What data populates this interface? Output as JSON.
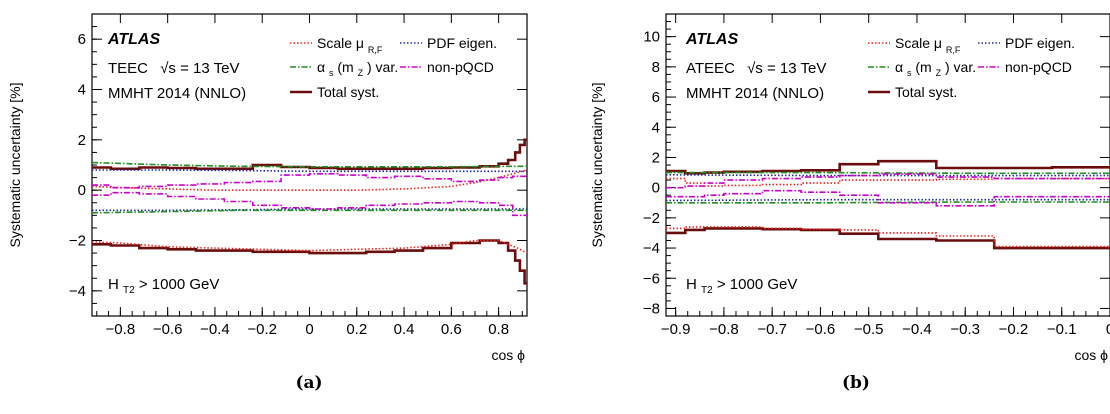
{
  "chart_data": [
    {
      "type": "line",
      "panel": "(a)",
      "atlas_label": "ATLAS",
      "observable": "TEEC",
      "sqrt_s": "13 TeV",
      "pdf": "MMHT 2014 (NNLO)",
      "cut_main": "H",
      "cut_sub": "T2",
      "cut_rest": " > 1000 GeV",
      "xlabel": "cos ϕ",
      "ylabel": "Systematic uncertainty [%]",
      "xlim": [
        -0.92,
        0.92
      ],
      "ylim": [
        -5,
        7
      ],
      "xticks": [
        "−0.8",
        "−0.6",
        "−0.4",
        "−0.2",
        "0",
        "0.2",
        "0.4",
        "0.6",
        "0.8"
      ],
      "xtick_values": [
        -0.8,
        -0.6,
        -0.4,
        -0.2,
        0,
        0.2,
        0.4,
        0.6,
        0.8
      ],
      "yticks": [
        "−4",
        "−2",
        "0",
        "2",
        "4",
        "6"
      ],
      "ytick_values": [
        -4,
        -2,
        0,
        2,
        4,
        6
      ],
      "legend": {
        "scale_main": "Scale μ",
        "scale_sub": "R,F",
        "pdf": "PDF eigen.",
        "alphas_main": "α",
        "alphas_sub1": "s",
        "alphas_mid": "(m",
        "alphas_sub2": "Z",
        "alphas_end": ") var.",
        "nonpqcd": "non-pQCD",
        "total": "Total syst."
      },
      "series": [
        {
          "name": "Total syst.",
          "color": "#6b0d0d",
          "style": "solid",
          "width": 2.6,
          "step": true,
          "x": [
            -0.92,
            -0.84,
            -0.72,
            -0.6,
            -0.48,
            -0.36,
            -0.24,
            -0.12,
            0,
            0.12,
            0.24,
            0.36,
            0.48,
            0.6,
            0.72,
            0.8,
            0.84,
            0.87,
            0.89,
            0.91,
            0.92
          ],
          "up": [
            0.9,
            0.85,
            0.9,
            0.88,
            0.85,
            0.85,
            1.0,
            0.92,
            0.88,
            0.85,
            0.85,
            0.85,
            0.88,
            0.9,
            0.95,
            1.05,
            1.2,
            1.5,
            1.8,
            2.0,
            2.0
          ],
          "down": [
            -2.15,
            -2.2,
            -2.3,
            -2.35,
            -2.4,
            -2.4,
            -2.45,
            -2.45,
            -2.5,
            -2.5,
            -2.45,
            -2.4,
            -2.3,
            -2.1,
            -2.0,
            -2.1,
            -2.4,
            -2.8,
            -3.2,
            -3.7,
            -3.7
          ]
        },
        {
          "name": "Scale μR,F",
          "color": "#e8271c",
          "style": "dotted",
          "width": 1.6,
          "step": false,
          "x": [
            -0.92,
            -0.8,
            -0.6,
            -0.4,
            -0.2,
            0,
            0.2,
            0.4,
            0.6,
            0.7,
            0.8,
            0.88,
            0.92
          ],
          "up": [
            0.15,
            0.1,
            0.05,
            0.0,
            0.0,
            0.0,
            0.0,
            0.05,
            0.15,
            0.3,
            0.5,
            0.7,
            0.8
          ],
          "down": [
            -2.05,
            -2.1,
            -2.25,
            -2.3,
            -2.35,
            -2.4,
            -2.35,
            -2.3,
            -2.15,
            -2.0,
            -2.0,
            -2.3,
            -2.5
          ]
        },
        {
          "name": "PDF eigen.",
          "color": "#1e2aa8",
          "style": "dotted",
          "width": 1.6,
          "step": false,
          "x": [
            -0.92,
            -0.6,
            -0.3,
            0,
            0.3,
            0.6,
            0.92
          ],
          "up": [
            0.8,
            0.8,
            0.78,
            0.75,
            0.75,
            0.75,
            0.75
          ],
          "down": [
            -0.8,
            -0.8,
            -0.78,
            -0.75,
            -0.75,
            -0.75,
            -0.75
          ]
        },
        {
          "name": "αs(mZ) var.",
          "color": "#1f8f1f",
          "style": "dashdot",
          "width": 1.6,
          "step": false,
          "x": [
            -0.92,
            -0.6,
            -0.3,
            0,
            0.3,
            0.6,
            0.85,
            0.92
          ],
          "up": [
            1.1,
            1.0,
            0.95,
            0.93,
            0.93,
            0.93,
            0.95,
            0.95
          ],
          "down": [
            -0.9,
            -0.85,
            -0.8,
            -0.8,
            -0.8,
            -0.8,
            -0.8,
            -0.8
          ]
        },
        {
          "name": "non-pQCD",
          "color": "#cc00cc",
          "style": "dashdot",
          "width": 1.6,
          "step": true,
          "x": [
            -0.92,
            -0.84,
            -0.72,
            -0.6,
            -0.48,
            -0.36,
            -0.24,
            -0.12,
            0,
            0.12,
            0.24,
            0.36,
            0.48,
            0.6,
            0.72,
            0.8,
            0.86,
            0.92
          ],
          "up": [
            0.2,
            0.1,
            0.15,
            0.2,
            0.25,
            0.3,
            0.35,
            0.6,
            0.65,
            0.6,
            0.5,
            0.55,
            0.45,
            0.35,
            0.4,
            0.5,
            0.55,
            0.55
          ],
          "down": [
            -0.2,
            -0.1,
            -0.15,
            -0.25,
            -0.35,
            -0.45,
            -0.6,
            -0.7,
            -0.75,
            -0.7,
            -0.6,
            -0.55,
            -0.5,
            -0.45,
            -0.5,
            -0.6,
            -1.0,
            -1.8
          ]
        }
      ]
    },
    {
      "type": "line",
      "panel": "(b)",
      "atlas_label": "ATLAS",
      "observable": "ATEEC",
      "sqrt_s": "13 TeV",
      "pdf": "MMHT 2014 (NNLO)",
      "cut_main": "H",
      "cut_sub": "T2",
      "cut_rest": " > 1000 GeV",
      "xlabel": "cos ϕ",
      "ylabel": "Systematic uncertainty [%]",
      "xlim": [
        -0.92,
        0
      ],
      "ylim": [
        -8.5,
        11.5
      ],
      "xticks": [
        "−0.9",
        "−0.8",
        "−0.7",
        "−0.6",
        "−0.5",
        "−0.4",
        "−0.3",
        "−0.2",
        "−0.1",
        "0"
      ],
      "xtick_values": [
        -0.9,
        -0.8,
        -0.7,
        -0.6,
        -0.5,
        -0.4,
        -0.3,
        -0.2,
        -0.1,
        0
      ],
      "yticks": [
        "−8",
        "−6",
        "−4",
        "−2",
        "0",
        "2",
        "4",
        "6",
        "8",
        "10"
      ],
      "ytick_values": [
        -8,
        -6,
        -4,
        -2,
        0,
        2,
        4,
        6,
        8,
        10
      ],
      "legend": {
        "scale_main": "Scale μ",
        "scale_sub": "R,F",
        "pdf": "PDF eigen.",
        "alphas_main": "α",
        "alphas_sub1": "s",
        "alphas_mid": "(m",
        "alphas_sub2": "Z",
        "alphas_end": ") var.",
        "nonpqcd": "non-pQCD",
        "total": "Total syst."
      },
      "series": [
        {
          "name": "Total syst.",
          "color": "#6b0d0d",
          "style": "solid",
          "width": 2.6,
          "step": true,
          "x": [
            -0.92,
            -0.88,
            -0.84,
            -0.8,
            -0.72,
            -0.64,
            -0.56,
            -0.48,
            -0.36,
            -0.24,
            -0.12,
            0
          ],
          "up": [
            1.1,
            0.95,
            1.0,
            1.05,
            1.1,
            1.15,
            1.55,
            1.75,
            1.3,
            1.3,
            1.35,
            1.35
          ],
          "down": [
            -3.0,
            -2.8,
            -2.7,
            -2.7,
            -2.75,
            -2.8,
            -3.05,
            -3.4,
            -3.5,
            -4.0,
            -4.0,
            -4.0
          ]
        },
        {
          "name": "Scale μR,F",
          "color": "#e8271c",
          "style": "dotted",
          "width": 1.6,
          "step": true,
          "x": [
            -0.92,
            -0.88,
            -0.84,
            -0.8,
            -0.72,
            -0.64,
            -0.56,
            -0.48,
            -0.36,
            -0.24,
            -0.12,
            0
          ],
          "up": [
            0.6,
            0.3,
            0.1,
            0.15,
            0.2,
            0.3,
            0.5,
            0.5,
            0.55,
            0.6,
            0.6,
            0.6
          ],
          "down": [
            -2.7,
            -2.6,
            -2.6,
            -2.6,
            -2.7,
            -2.75,
            -2.8,
            -3.0,
            -3.2,
            -3.9,
            -3.9,
            -3.9
          ]
        },
        {
          "name": "PDF eigen.",
          "color": "#1e2aa8",
          "style": "dotted",
          "width": 1.6,
          "step": false,
          "x": [
            -0.92,
            -0.6,
            -0.3,
            0
          ],
          "up": [
            0.85,
            0.8,
            0.8,
            0.8
          ],
          "down": [
            -0.85,
            -0.8,
            -0.8,
            -0.8
          ]
        },
        {
          "name": "αs(mZ) var.",
          "color": "#1f8f1f",
          "style": "dashdot",
          "width": 1.6,
          "step": false,
          "x": [
            -0.92,
            -0.6,
            -0.3,
            0
          ],
          "up": [
            1.0,
            1.0,
            0.95,
            0.95
          ],
          "down": [
            -1.0,
            -1.0,
            -0.95,
            -0.95
          ]
        },
        {
          "name": "non-pQCD",
          "color": "#cc00cc",
          "style": "dashdot",
          "width": 1.6,
          "step": true,
          "x": [
            -0.92,
            -0.88,
            -0.84,
            -0.8,
            -0.72,
            -0.64,
            -0.56,
            -0.48,
            -0.36,
            -0.24,
            -0.12,
            0
          ],
          "up": [
            0.0,
            0.1,
            0.3,
            0.5,
            0.6,
            0.7,
            0.8,
            0.9,
            0.7,
            0.6,
            0.6,
            0.6
          ],
          "down": [
            -0.6,
            -0.6,
            -0.5,
            -0.4,
            -0.2,
            -0.3,
            -0.5,
            -1.0,
            -1.2,
            -0.6,
            -0.6,
            -0.6
          ]
        }
      ]
    }
  ]
}
